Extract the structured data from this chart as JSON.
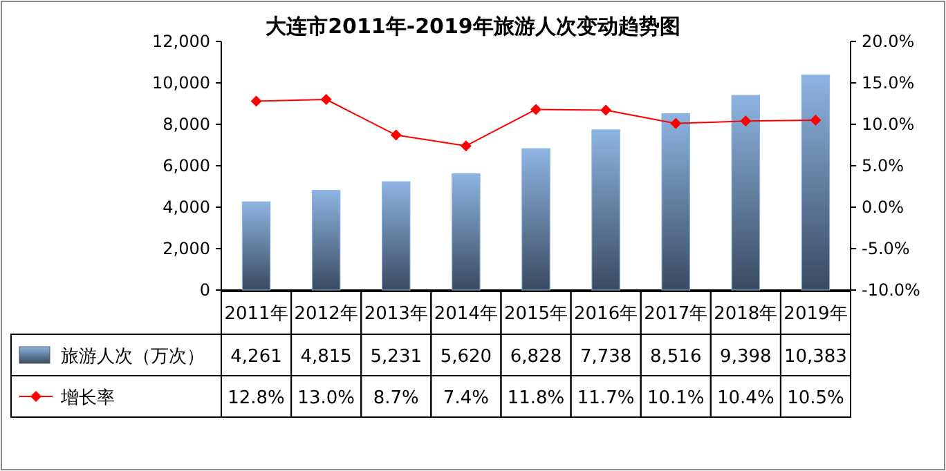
{
  "chart_data": {
    "type": "bar",
    "title": "大连市2011年-2019年旅游人次变动趋势图",
    "categories": [
      "2011年",
      "2012年",
      "2013年",
      "2014年",
      "2015年",
      "2016年",
      "2017年",
      "2018年",
      "2019年"
    ],
    "series": [
      {
        "name": "旅游人次（万次）",
        "type": "bar",
        "color": "#8db4e2",
        "values": [
          4261,
          4815,
          5231,
          5620,
          6828,
          7738,
          8516,
          9398,
          10383
        ],
        "value_labels": [
          "4,261",
          "4,815",
          "5,231",
          "5,620",
          "6,828",
          "7,738",
          "8,516",
          "9,398",
          "10,383"
        ]
      },
      {
        "name": "增长率",
        "type": "line",
        "axis": "y2",
        "color": "#ff0000",
        "marker": "diamond",
        "values": [
          12.8,
          13.0,
          8.7,
          7.4,
          11.8,
          11.7,
          10.1,
          10.4,
          10.5
        ],
        "value_labels": [
          "12.8%",
          "13.0%",
          "8.7%",
          "7.4%",
          "11.8%",
          "11.7%",
          "10.1%",
          "10.4%",
          "10.5%"
        ]
      }
    ],
    "ylim": [
      0,
      12000
    ],
    "yticks": [
      {
        "value": 0,
        "label": "0"
      },
      {
        "value": 2000,
        "label": "2,000"
      },
      {
        "value": 4000,
        "label": "4,000"
      },
      {
        "value": 6000,
        "label": "6,000"
      },
      {
        "value": 8000,
        "label": "8,000"
      },
      {
        "value": 10000,
        "label": "10,000"
      },
      {
        "value": 12000,
        "label": "12,000"
      }
    ],
    "y2lim": [
      -10,
      20
    ],
    "y2ticks": [
      {
        "value": -10,
        "label": "-10.0%"
      },
      {
        "value": -5,
        "label": "-5.0%"
      },
      {
        "value": 0,
        "label": "0.0%"
      },
      {
        "value": 5,
        "label": "5.0%"
      },
      {
        "value": 10,
        "label": "10.0%"
      },
      {
        "value": 15,
        "label": "15.0%"
      },
      {
        "value": 20,
        "label": "20.0%"
      }
    ],
    "legend": "bottom",
    "grid": false
  }
}
